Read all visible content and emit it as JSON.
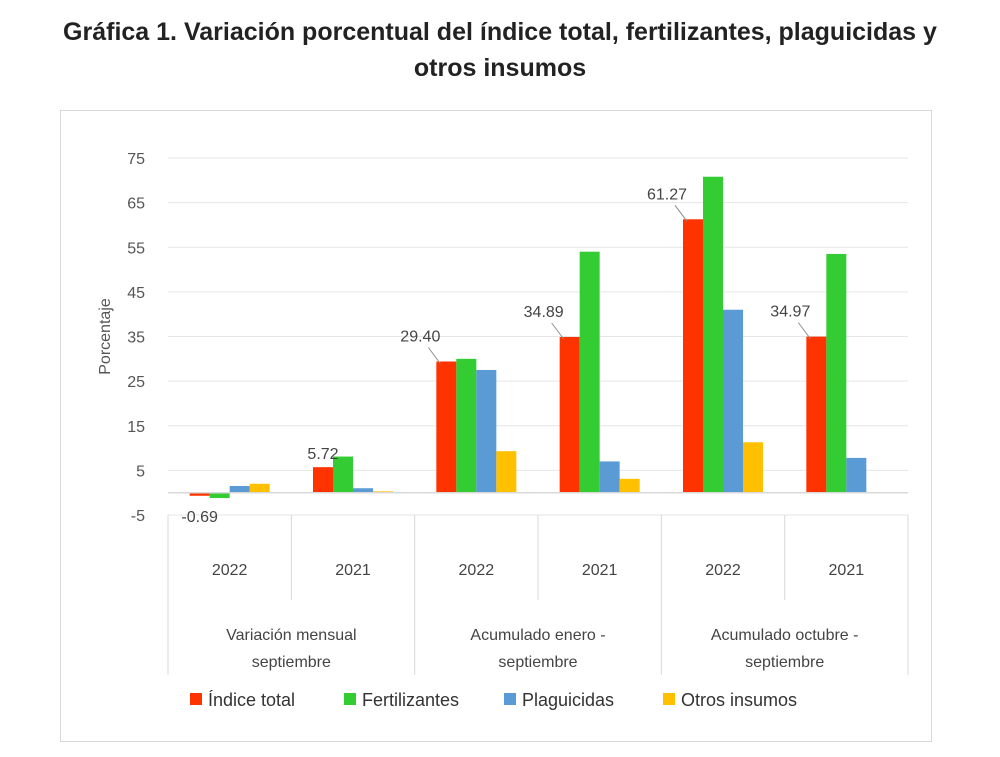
{
  "chart_data": {
    "type": "bar",
    "title_line1": "Gráfica 1. Variación porcentual del índice total, fertilizantes, plaguicidas y",
    "title_line2": "otros insumos",
    "ylabel": "Porcentaje",
    "ylim": [
      -5,
      75
    ],
    "yticks": [
      75,
      65,
      55,
      45,
      35,
      25,
      15,
      5,
      -5
    ],
    "grid": true,
    "legend_position": "bottom",
    "groups": [
      {
        "label": "Variación mensual septiembre",
        "line1": "Variación mensual",
        "line2": "septiembre"
      },
      {
        "label": "Acumulado enero - septiembre",
        "line1": "Acumulado enero -",
        "line2": "septiembre"
      },
      {
        "label": "Acumulado octubre - septiembre",
        "line1": "Acumulado octubre -",
        "line2": "septiembre"
      }
    ],
    "categories": [
      "2022",
      "2021",
      "2022",
      "2021",
      "2022",
      "2021"
    ],
    "series": [
      {
        "name": "Índice total",
        "color": "#ff3300",
        "values": [
          -0.69,
          5.72,
          29.4,
          34.89,
          61.27,
          34.97
        ]
      },
      {
        "name": "Fertilizantes",
        "color": "#33cc33",
        "values": [
          -1.2,
          8.1,
          30.0,
          54.0,
          70.8,
          53.5
        ]
      },
      {
        "name": "Plaguicidas",
        "color": "#5b9bd5",
        "values": [
          1.5,
          1.0,
          27.5,
          7.0,
          41.0,
          7.8
        ]
      },
      {
        "name": "Otros insumos",
        "color": "#ffc000",
        "values": [
          2.0,
          0.3,
          9.3,
          3.1,
          11.3,
          0.0
        ]
      }
    ],
    "data_labels": [
      {
        "series": 0,
        "index": 0,
        "text": "-0.69"
      },
      {
        "series": 0,
        "index": 1,
        "text": "5.72"
      },
      {
        "series": 0,
        "index": 2,
        "text": "29.40"
      },
      {
        "series": 0,
        "index": 3,
        "text": "34.89"
      },
      {
        "series": 0,
        "index": 4,
        "text": "61.27"
      },
      {
        "series": 0,
        "index": 5,
        "text": "34.97"
      }
    ]
  }
}
